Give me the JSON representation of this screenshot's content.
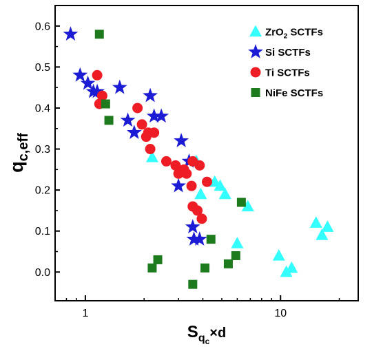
{
  "chart_data": {
    "type": "scatter",
    "x_scale": "log",
    "xlim": [
      0.7,
      25
    ],
    "ylim": [
      -0.07,
      0.65
    ],
    "xlabel": {
      "base": "S",
      "sub": "q",
      "subsub": "c",
      "tail": "×d"
    },
    "ylabel": {
      "base": "q",
      "sub": "c,eff"
    },
    "xticks": [
      {
        "value": 1,
        "label": "1"
      },
      {
        "value": 10,
        "label": "10"
      }
    ],
    "yticks": [
      {
        "value": 0.0,
        "label": "0.0"
      },
      {
        "value": 0.1,
        "label": "0.1"
      },
      {
        "value": 0.2,
        "label": "0.2"
      },
      {
        "value": 0.3,
        "label": "0.3"
      },
      {
        "value": 0.4,
        "label": "0.4"
      },
      {
        "value": 0.5,
        "label": "0.5"
      },
      {
        "value": 0.6,
        "label": "0.6"
      }
    ],
    "legend_position": "top-right",
    "series": [
      {
        "name": "ZrO2 SCTFs",
        "legend_base": "ZrO",
        "legend_sub": "2",
        "legend_tail": " SCTFs",
        "marker": "triangle",
        "color": "#33ffff",
        "points": [
          [
            2.2,
            0.28
          ],
          [
            3.7,
            0.27
          ],
          [
            3.9,
            0.19
          ],
          [
            4.6,
            0.22
          ],
          [
            4.9,
            0.21
          ],
          [
            5.2,
            0.19
          ],
          [
            6.8,
            0.16
          ],
          [
            6.0,
            0.07
          ],
          [
            9.8,
            0.04
          ],
          [
            10.7,
            0.0
          ],
          [
            11.4,
            0.01
          ],
          [
            15.2,
            0.12
          ],
          [
            16.3,
            0.09
          ],
          [
            17.4,
            0.11
          ]
        ]
      },
      {
        "name": "Si SCTFs",
        "legend_base": "Si SCTFs",
        "legend_sub": "",
        "legend_tail": "",
        "marker": "star",
        "color": "#1c1cd4",
        "points": [
          [
            0.84,
            0.58
          ],
          [
            0.94,
            0.48
          ],
          [
            1.03,
            0.46
          ],
          [
            1.1,
            0.44
          ],
          [
            1.15,
            0.44
          ],
          [
            1.5,
            0.45
          ],
          [
            1.65,
            0.37
          ],
          [
            1.78,
            0.34
          ],
          [
            2.15,
            0.43
          ],
          [
            2.25,
            0.38
          ],
          [
            2.45,
            0.38
          ],
          [
            3.1,
            0.32
          ],
          [
            3.4,
            0.27
          ],
          [
            3.0,
            0.21
          ],
          [
            3.55,
            0.11
          ],
          [
            3.6,
            0.08
          ],
          [
            3.85,
            0.08
          ]
        ]
      },
      {
        "name": "Ti SCTFs",
        "legend_base": "Ti SCTFs",
        "legend_sub": "",
        "legend_tail": "",
        "marker": "circle",
        "color": "#ee1c24",
        "points": [
          [
            1.15,
            0.48
          ],
          [
            1.22,
            0.43
          ],
          [
            1.18,
            0.41
          ],
          [
            1.85,
            0.4
          ],
          [
            1.95,
            0.36
          ],
          [
            2.05,
            0.33
          ],
          [
            2.1,
            0.34
          ],
          [
            2.25,
            0.34
          ],
          [
            2.15,
            0.3
          ],
          [
            2.6,
            0.27
          ],
          [
            2.9,
            0.26
          ],
          [
            3.0,
            0.24
          ],
          [
            3.2,
            0.25
          ],
          [
            3.3,
            0.24
          ],
          [
            3.55,
            0.27
          ],
          [
            3.5,
            0.21
          ],
          [
            3.85,
            0.26
          ],
          [
            4.2,
            0.22
          ],
          [
            3.55,
            0.16
          ],
          [
            3.75,
            0.15
          ],
          [
            3.95,
            0.13
          ]
        ]
      },
      {
        "name": "NiFe SCTFs",
        "legend_base": "NiFe SCTFs",
        "legend_sub": "",
        "legend_tail": "",
        "marker": "square",
        "color": "#1d7a1d",
        "points": [
          [
            1.18,
            0.58
          ],
          [
            1.27,
            0.41
          ],
          [
            1.32,
            0.37
          ],
          [
            2.2,
            0.01
          ],
          [
            2.35,
            0.03
          ],
          [
            3.55,
            -0.03
          ],
          [
            4.1,
            0.01
          ],
          [
            4.4,
            0.08
          ],
          [
            5.4,
            0.02
          ],
          [
            5.9,
            0.04
          ],
          [
            6.3,
            0.17
          ]
        ]
      }
    ]
  }
}
